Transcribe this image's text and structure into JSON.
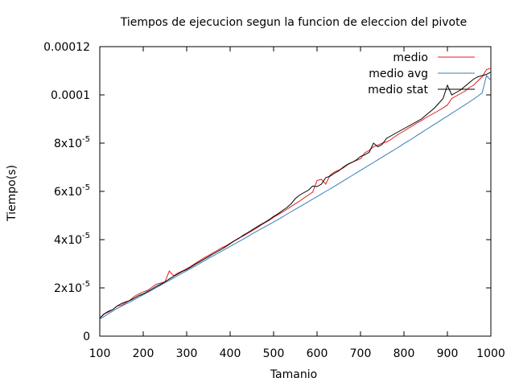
{
  "chart_data": {
    "type": "line",
    "title": "Tiempos de ejecucion segun la funcion de eleccion del pivote",
    "xlabel": "Tamanio",
    "ylabel": "Tiempo(s)",
    "xlim": [
      100,
      1000
    ],
    "ylim": [
      0,
      0.00012
    ],
    "grid": false,
    "legend_position": "top-right",
    "x_ticks": [
      {
        "value": 100,
        "label": "100"
      },
      {
        "value": 200,
        "label": "200"
      },
      {
        "value": 300,
        "label": "300"
      },
      {
        "value": 400,
        "label": "400"
      },
      {
        "value": 500,
        "label": "500"
      },
      {
        "value": 600,
        "label": "600"
      },
      {
        "value": 700,
        "label": "700"
      },
      {
        "value": 800,
        "label": "800"
      },
      {
        "value": 900,
        "label": "900"
      },
      {
        "value": 1000,
        "label": "1000"
      }
    ],
    "y_ticks": [
      {
        "value": 0,
        "base": "0",
        "exp": ""
      },
      {
        "value": 2e-05,
        "base": "2x10",
        "exp": "-5"
      },
      {
        "value": 4e-05,
        "base": "4x10",
        "exp": "-5"
      },
      {
        "value": 6e-05,
        "base": "6x10",
        "exp": "-5"
      },
      {
        "value": 8e-05,
        "base": "8x10",
        "exp": "-5"
      },
      {
        "value": 0.0001,
        "base": "0.0001",
        "exp": ""
      },
      {
        "value": 0.00012,
        "base": "0.00012",
        "exp": ""
      }
    ],
    "x": [
      100,
      110,
      120,
      130,
      140,
      150,
      160,
      170,
      180,
      190,
      200,
      210,
      220,
      230,
      240,
      250,
      260,
      270,
      280,
      290,
      300,
      310,
      320,
      330,
      340,
      350,
      360,
      370,
      380,
      390,
      400,
      410,
      420,
      430,
      440,
      450,
      460,
      470,
      480,
      490,
      500,
      510,
      520,
      530,
      540,
      550,
      560,
      570,
      580,
      590,
      600,
      610,
      620,
      630,
      640,
      650,
      660,
      670,
      680,
      690,
      700,
      710,
      720,
      730,
      740,
      750,
      760,
      770,
      780,
      790,
      800,
      810,
      820,
      830,
      840,
      850,
      860,
      870,
      880,
      890,
      900,
      910,
      920,
      930,
      940,
      950,
      960,
      970,
      980,
      990,
      1000
    ],
    "series": [
      {
        "name": "medio",
        "color": "#e41a1c",
        "values": [
          7.5e-06,
          9.3e-06,
          1e-05,
          1.1e-05,
          1.25e-05,
          1.28e-05,
          1.38e-05,
          1.5e-05,
          1.65e-05,
          1.75e-05,
          1.83e-05,
          1.9e-05,
          2.02e-05,
          2.15e-05,
          2.2e-05,
          2.25e-05,
          2.7e-05,
          2.5e-05,
          2.62e-05,
          2.7e-05,
          2.8e-05,
          2.9e-05,
          3.02e-05,
          3.13e-05,
          3.25e-05,
          3.34e-05,
          3.45e-05,
          3.55e-05,
          3.66e-05,
          3.74e-05,
          3.85e-05,
          3.96e-05,
          4.07e-05,
          4.15e-05,
          4.26e-05,
          4.36e-05,
          4.47e-05,
          4.59e-05,
          4.7e-05,
          4.8e-05,
          4.93e-05,
          5.03e-05,
          5.14e-05,
          5.25e-05,
          5.37e-05,
          5.49e-05,
          5.6e-05,
          5.73e-05,
          5.85e-05,
          5.97e-05,
          6.45e-05,
          6.5e-05,
          6.3e-05,
          6.68e-05,
          6.8e-05,
          6.88e-05,
          6.97e-05,
          7.1e-05,
          7.2e-05,
          7.28e-05,
          7.35e-05,
          7.6e-05,
          7.7e-05,
          7.85e-05,
          7.92e-05,
          8e-05,
          8.05e-05,
          8.15e-05,
          8.28e-05,
          8.4e-05,
          8.5e-05,
          8.62e-05,
          8.72e-05,
          8.84e-05,
          8.93e-05,
          9.05e-05,
          9.15e-05,
          9.25e-05,
          9.35e-05,
          9.46e-05,
          9.58e-05,
          9.85e-05,
          9.95e-05,
          0.0001005,
          0.0001015,
          0.000103,
          0.000104,
          0.0001058,
          0.0001075,
          0.0001105,
          0.000111
        ]
      },
      {
        "name": "medio avg",
        "color": "#377eb8",
        "values": [
          7e-06,
          8.2e-06,
          9.3e-06,
          1.04e-05,
          1.15e-05,
          1.24e-05,
          1.33e-05,
          1.42e-05,
          1.52e-05,
          1.62e-05,
          1.72e-05,
          1.81e-05,
          1.91e-05,
          2.01e-05,
          2.11e-05,
          2.21e-05,
          2.31e-05,
          2.41e-05,
          2.51e-05,
          2.61e-05,
          2.71e-05,
          2.81e-05,
          2.91e-05,
          3.01e-05,
          3.12e-05,
          3.22e-05,
          3.32e-05,
          3.42e-05,
          3.52e-05,
          3.62e-05,
          3.72e-05,
          3.82e-05,
          3.92e-05,
          4.02e-05,
          4.12e-05,
          4.23e-05,
          4.33e-05,
          4.43e-05,
          4.53e-05,
          4.63e-05,
          4.73e-05,
          4.83e-05,
          4.94e-05,
          5.05e-05,
          5.15e-05,
          5.26e-05,
          5.36e-05,
          5.47e-05,
          5.57e-05,
          5.68e-05,
          5.78e-05,
          5.89e-05,
          6e-05,
          6.1e-05,
          6.21e-05,
          6.32e-05,
          6.43e-05,
          6.54e-05,
          6.65e-05,
          6.76e-05,
          6.87e-05,
          6.98e-05,
          7.09e-05,
          7.2e-05,
          7.31e-05,
          7.42e-05,
          7.53e-05,
          7.64e-05,
          7.75e-05,
          7.86e-05,
          7.98e-05,
          8.09e-05,
          8.2e-05,
          8.32e-05,
          8.43e-05,
          8.55e-05,
          8.66e-05,
          8.78e-05,
          8.89e-05,
          9.01e-05,
          9.12e-05,
          9.24e-05,
          9.35e-05,
          9.47e-05,
          9.58e-05,
          9.7e-05,
          9.82e-05,
          9.95e-05,
          0.0001008,
          0.000108,
          0.000106
        ]
      },
      {
        "name": "medio stat",
        "color": "#000000",
        "values": [
          7.4e-06,
          9.2e-06,
          1.03e-05,
          1.1e-05,
          1.25e-05,
          1.35e-05,
          1.42e-05,
          1.48e-05,
          1.58e-05,
          1.68e-05,
          1.75e-05,
          1.85e-05,
          1.95e-05,
          2.06e-05,
          2.15e-05,
          2.25e-05,
          2.37e-05,
          2.48e-05,
          2.58e-05,
          2.68e-05,
          2.76e-05,
          2.87e-05,
          2.98e-05,
          3.08e-05,
          3.19e-05,
          3.29e-05,
          3.4e-05,
          3.5e-05,
          3.6e-05,
          3.71e-05,
          3.83e-05,
          3.95e-05,
          4.05e-05,
          4.18e-05,
          4.28e-05,
          4.4e-05,
          4.51e-05,
          4.62e-05,
          4.72e-05,
          4.83e-05,
          4.96e-05,
          5.07e-05,
          5.2e-05,
          5.32e-05,
          5.48e-05,
          5.7e-05,
          5.85e-05,
          5.95e-05,
          6.05e-05,
          6.22e-05,
          6.2e-05,
          6.3e-05,
          6.57e-05,
          6.63e-05,
          6.75e-05,
          6.85e-05,
          7e-05,
          7.12e-05,
          7.2e-05,
          7.3e-05,
          7.45e-05,
          7.52e-05,
          7.62e-05,
          8e-05,
          7.85e-05,
          7.95e-05,
          8.2e-05,
          8.3e-05,
          8.4e-05,
          8.5e-05,
          8.6e-05,
          8.7e-05,
          8.8e-05,
          8.9e-05,
          9e-05,
          9.15e-05,
          9.3e-05,
          9.45e-05,
          9.65e-05,
          9.85e-05,
          0.000104,
          0.0001,
          0.000101,
          0.000102,
          0.0001035,
          0.000105,
          0.0001065,
          0.0001075,
          0.000108,
          0.0001085,
          0.0001095
        ]
      }
    ]
  }
}
